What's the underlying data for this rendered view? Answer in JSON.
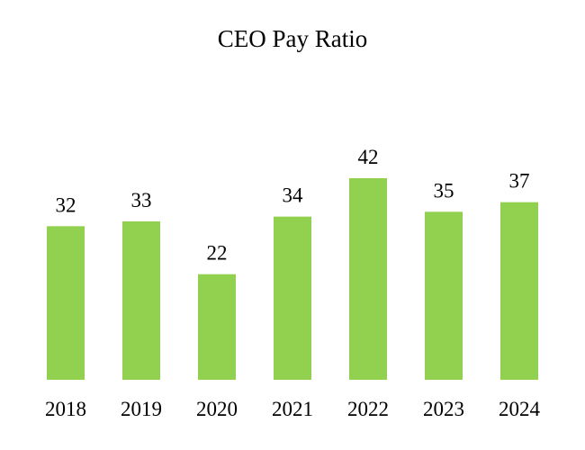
{
  "chart_data": {
    "type": "bar",
    "title": "CEO Pay Ratio",
    "categories": [
      "2018",
      "2019",
      "2020",
      "2021",
      "2022",
      "2023",
      "2024"
    ],
    "values": [
      32,
      33,
      22,
      34,
      42,
      35,
      37
    ],
    "xlabel": "",
    "ylabel": "",
    "ylim": [
      0,
      42
    ],
    "grid": false,
    "legend": "none",
    "bar_color": "#92d050"
  }
}
